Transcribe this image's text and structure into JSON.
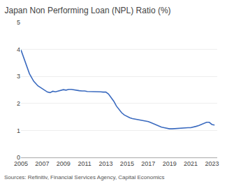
{
  "chart_data": {
    "type": "line",
    "title": "Japan Non Performing Loan (NPL) Ratio (%)",
    "annotations": [
      "Sources: Refinitiv, Financial Services Agency, Capital Economics"
    ],
    "x": [
      2005,
      2005.4,
      2005.8,
      2006.2,
      2006.6,
      2007.0,
      2007.25,
      2007.5,
      2007.75,
      2008.0,
      2008.25,
      2008.5,
      2008.75,
      2009.0,
      2009.25,
      2009.5,
      2009.75,
      2010.0,
      2010.25,
      2010.5,
      2010.75,
      2011.0,
      2011.25,
      2011.5,
      2011.75,
      2012.0,
      2012.25,
      2012.5,
      2012.75,
      2013.0,
      2013.25,
      2013.5,
      2013.75,
      2014.0,
      2014.25,
      2014.5,
      2014.75,
      2015.0,
      2015.25,
      2015.5,
      2015.75,
      2016.0,
      2016.25,
      2016.5,
      2016.75,
      2017.0,
      2017.25,
      2017.5,
      2017.75,
      2018.0,
      2018.25,
      2018.5,
      2018.75,
      2019.0,
      2019.25,
      2019.5,
      2019.75,
      2020.0,
      2020.25,
      2020.5,
      2020.75,
      2021.0,
      2021.25,
      2021.5,
      2021.75,
      2022.0,
      2022.25,
      2022.5,
      2022.75,
      2023.0,
      2023.25
    ],
    "values": [
      3.98,
      3.55,
      3.1,
      2.82,
      2.65,
      2.55,
      2.48,
      2.42,
      2.4,
      2.45,
      2.43,
      2.46,
      2.48,
      2.51,
      2.49,
      2.52,
      2.52,
      2.5,
      2.48,
      2.47,
      2.46,
      2.46,
      2.44,
      2.44,
      2.44,
      2.44,
      2.43,
      2.43,
      2.42,
      2.42,
      2.35,
      2.22,
      2.08,
      1.9,
      1.76,
      1.65,
      1.57,
      1.51,
      1.47,
      1.44,
      1.42,
      1.41,
      1.39,
      1.37,
      1.35,
      1.33,
      1.29,
      1.25,
      1.2,
      1.15,
      1.12,
      1.1,
      1.08,
      1.06,
      1.06,
      1.07,
      1.07,
      1.08,
      1.09,
      1.1,
      1.1,
      1.1,
      1.12,
      1.15,
      1.18,
      1.22,
      1.27,
      1.3,
      1.3,
      1.22,
      1.2
    ],
    "color": "#3a6abf",
    "xlim": [
      2005,
      2023.5
    ],
    "xticks": [
      2005,
      2007,
      2009,
      2011,
      2013,
      2015,
      2017,
      2019,
      2021,
      2023
    ],
    "ylim": [
      0,
      5
    ],
    "yticks": [
      0,
      1,
      2,
      3,
      4,
      5
    ],
    "grid": true
  }
}
